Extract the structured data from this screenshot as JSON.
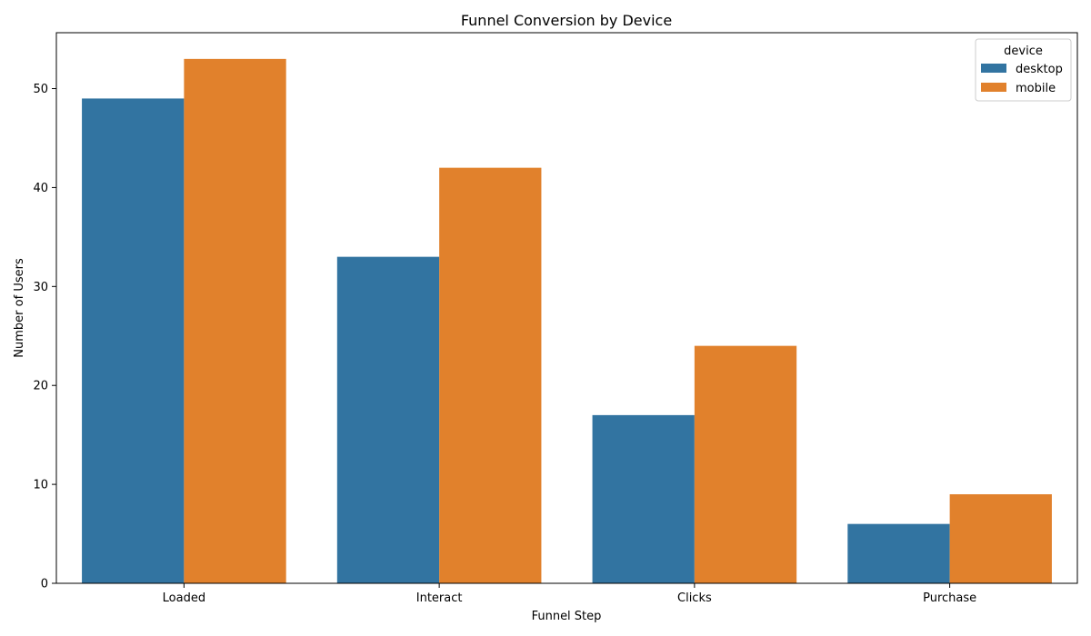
{
  "chart_data": {
    "type": "bar",
    "title": "Funnel Conversion by Device",
    "xlabel": "Funnel Step",
    "ylabel": "Number of Users",
    "categories": [
      "Loaded",
      "Interact",
      "Clicks",
      "Purchase"
    ],
    "series": [
      {
        "name": "desktop",
        "values": [
          49,
          33,
          17,
          6
        ],
        "color": "#3274a1"
      },
      {
        "name": "mobile",
        "values": [
          53,
          42,
          24,
          9
        ],
        "color": "#e1812c"
      }
    ],
    "ylim": [
      0,
      55.65
    ],
    "yticks": [
      0,
      10,
      20,
      30,
      40,
      50
    ],
    "grid": false,
    "legend": {
      "title": "device",
      "position": "top-right"
    }
  }
}
